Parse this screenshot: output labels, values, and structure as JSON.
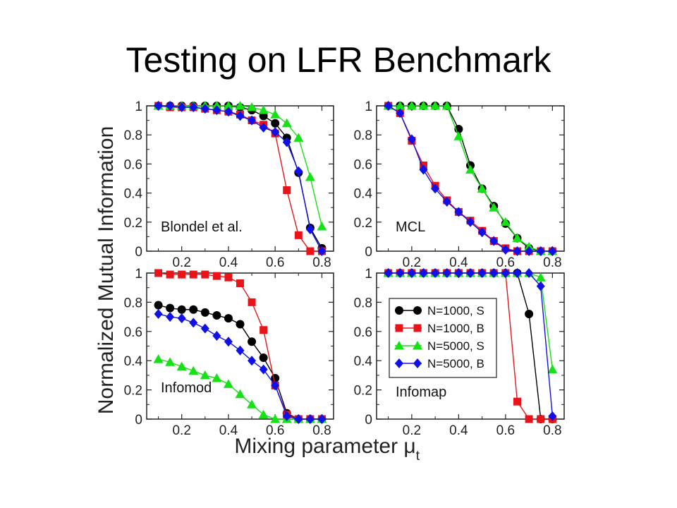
{
  "slide": {
    "title": "Testing on LFR Benchmark"
  },
  "colors": {
    "S1000": "#000000",
    "B1000": "#e8141a",
    "S5000": "#16e016",
    "B5000": "#1010e8"
  },
  "figure": {
    "ylabel": "Normalized Mutual Information",
    "xlabel_main": "Mixing parameter μ",
    "xlabel_sub": "t"
  },
  "chart_data": [
    {
      "type": "line",
      "label": "Blondel et al.",
      "xlim": [
        0.05,
        0.85
      ],
      "ylim": [
        0,
        1
      ],
      "xticks": [
        "0.2",
        "0.4",
        "0.6",
        "0.8"
      ],
      "yticks": [
        "0",
        "0.2",
        "0.4",
        "0.6",
        "0.8",
        "1"
      ],
      "x": [
        0.1,
        0.15,
        0.2,
        0.25,
        0.3,
        0.35,
        0.4,
        0.45,
        0.5,
        0.55,
        0.6,
        0.65,
        0.7,
        0.75,
        0.8
      ],
      "series": [
        {
          "name": "N=1000, S",
          "values": [
            1,
            1,
            1,
            1,
            1,
            1,
            1,
            0.99,
            0.97,
            0.93,
            0.88,
            0.78,
            0.54,
            0.16,
            0.02
          ]
        },
        {
          "name": "N=1000, B",
          "values": [
            1,
            0.99,
            0.99,
            0.99,
            0.98,
            0.97,
            0.96,
            0.94,
            0.9,
            0.87,
            0.81,
            0.42,
            0.11,
            0.0,
            0.0
          ]
        },
        {
          "name": "N=5000, S",
          "values": [
            1,
            1,
            1,
            1,
            1,
            1,
            1,
            1,
            0.99,
            0.97,
            0.94,
            0.88,
            0.78,
            0.51,
            0.17
          ]
        },
        {
          "name": "N=5000, B",
          "values": [
            1,
            1,
            0.99,
            0.99,
            0.98,
            0.97,
            0.96,
            0.93,
            0.9,
            0.85,
            0.82,
            0.75,
            0.55,
            0.15,
            0.0
          ]
        }
      ]
    },
    {
      "type": "line",
      "label": "MCL",
      "xlim": [
        0.05,
        0.85
      ],
      "ylim": [
        0,
        1
      ],
      "xticks": [
        "0.2",
        "0.4",
        "0.6",
        "0.8"
      ],
      "yticks": [
        "0",
        "0.2",
        "0.4",
        "0.6",
        "0.8",
        "1"
      ],
      "x": [
        0.1,
        0.15,
        0.2,
        0.25,
        0.3,
        0.35,
        0.4,
        0.45,
        0.5,
        0.55,
        0.6,
        0.65,
        0.7,
        0.75,
        0.8
      ],
      "series": [
        {
          "name": "N=1000, S",
          "values": [
            1,
            1,
            1,
            1,
            1,
            1,
            0.84,
            0.59,
            0.43,
            0.31,
            0.19,
            0.09,
            0.02,
            0.0,
            0.0
          ]
        },
        {
          "name": "N=1000, B",
          "values": [
            1,
            0.95,
            0.76,
            0.59,
            0.45,
            0.35,
            0.27,
            0.21,
            0.14,
            0.07,
            0.02,
            0.0,
            0.0,
            0.0,
            0.0
          ]
        },
        {
          "name": "N=5000, S",
          "values": [
            1,
            1,
            1,
            1,
            1,
            1,
            0.79,
            0.56,
            0.43,
            0.3,
            0.2,
            0.09,
            0.03,
            0.0,
            0.0
          ]
        },
        {
          "name": "N=5000, B",
          "values": [
            1,
            0.95,
            0.77,
            0.56,
            0.43,
            0.34,
            0.27,
            0.2,
            0.13,
            0.07,
            0.01,
            0.0,
            0.0,
            0.0,
            0.0
          ]
        }
      ]
    },
    {
      "type": "line",
      "label": "Infomod",
      "xlim": [
        0.05,
        0.85
      ],
      "ylim": [
        0,
        1
      ],
      "xticks": [
        "0.2",
        "0.4",
        "0.6",
        "0.8"
      ],
      "yticks": [
        "0",
        "0.2",
        "0.4",
        "0.6",
        "0.8",
        "1"
      ],
      "x": [
        0.1,
        0.15,
        0.2,
        0.25,
        0.3,
        0.35,
        0.4,
        0.45,
        0.5,
        0.55,
        0.6,
        0.65,
        0.7,
        0.75,
        0.8
      ],
      "series": [
        {
          "name": "N=1000, S",
          "values": [
            0.78,
            0.76,
            0.75,
            0.75,
            0.73,
            0.71,
            0.69,
            0.65,
            0.53,
            0.42,
            0.28,
            0.04,
            0.0,
            0.0,
            0.0
          ]
        },
        {
          "name": "N=1000, B",
          "values": [
            1,
            0.99,
            0.99,
            0.99,
            0.99,
            0.98,
            0.97,
            0.93,
            0.8,
            0.61,
            0.23,
            0.03,
            0.0,
            0.0,
            0.0
          ]
        },
        {
          "name": "N=5000, S",
          "values": [
            0.41,
            0.39,
            0.36,
            0.33,
            0.3,
            0.28,
            0.24,
            0.17,
            0.1,
            0.03,
            0.0,
            0.0,
            0.0,
            0.0,
            0.0
          ]
        },
        {
          "name": "N=5000, B",
          "values": [
            0.72,
            0.7,
            0.69,
            0.66,
            0.62,
            0.57,
            0.53,
            0.47,
            0.4,
            0.34,
            0.23,
            0.02,
            0.0,
            0.0,
            0.0
          ]
        }
      ]
    },
    {
      "type": "line",
      "label": "Infomap",
      "xlim": [
        0.05,
        0.85
      ],
      "ylim": [
        0,
        1
      ],
      "xticks": [
        "0.2",
        "0.4",
        "0.6",
        "0.8"
      ],
      "yticks": [
        "0",
        "0.2",
        "0.4",
        "0.6",
        "0.8",
        "1"
      ],
      "legend_position": "center-right",
      "x": [
        0.1,
        0.15,
        0.2,
        0.25,
        0.3,
        0.35,
        0.4,
        0.45,
        0.5,
        0.55,
        0.6,
        0.65,
        0.7,
        0.75,
        0.8
      ],
      "series": [
        {
          "name": "N=1000, S",
          "values": [
            1,
            1,
            1,
            1,
            1,
            1,
            1,
            1,
            1,
            1,
            1,
            1,
            0.72,
            0.0,
            0.0
          ]
        },
        {
          "name": "N=1000, B",
          "values": [
            1,
            1,
            1,
            1,
            1,
            1,
            1,
            1,
            1,
            1,
            1,
            0.12,
            0.0,
            0.0,
            0.0
          ]
        },
        {
          "name": "N=5000, S",
          "values": [
            1,
            1,
            1,
            1,
            1,
            1,
            1,
            1,
            1,
            1,
            1,
            1,
            1,
            0.97,
            0.34
          ]
        },
        {
          "name": "N=5000, B",
          "values": [
            1,
            1,
            1,
            1,
            1,
            1,
            1,
            1,
            1,
            1,
            1,
            1,
            1,
            0.91,
            0.02
          ]
        }
      ]
    }
  ]
}
